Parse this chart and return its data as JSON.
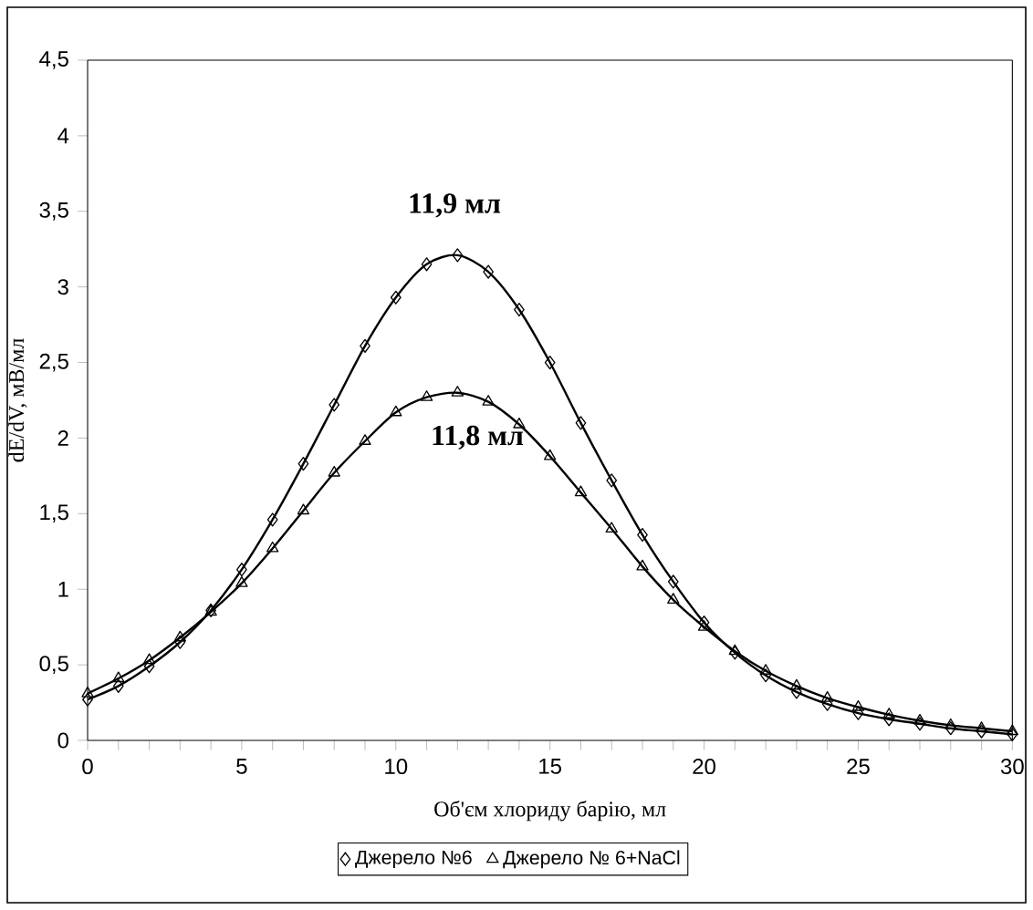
{
  "chart_data": {
    "type": "line",
    "xlabel": "Об'єм хлориду барію, мл",
    "ylabel": "dE/dV, мВ/мл",
    "x": [
      0,
      1,
      2,
      3,
      4,
      5,
      6,
      7,
      8,
      9,
      10,
      11,
      12,
      13,
      14,
      15,
      16,
      17,
      18,
      19,
      20,
      21,
      22,
      23,
      24,
      25,
      26,
      27,
      28,
      29,
      30
    ],
    "series": [
      {
        "name": "Джерело №6",
        "color": "#000000",
        "marker": "diamond",
        "values": [
          0.27,
          0.36,
          0.49,
          0.65,
          0.86,
          1.13,
          1.46,
          1.83,
          2.22,
          2.61,
          2.93,
          3.15,
          3.21,
          3.1,
          2.85,
          2.5,
          2.1,
          1.72,
          1.36,
          1.05,
          0.78,
          0.58,
          0.43,
          0.32,
          0.24,
          0.18,
          0.14,
          0.11,
          0.08,
          0.06,
          0.04
        ]
      },
      {
        "name": "Джерело № 6+NaCl",
        "color": "#000000",
        "marker": "triangle",
        "values": [
          0.31,
          0.41,
          0.53,
          0.68,
          0.85,
          1.04,
          1.27,
          1.52,
          1.77,
          1.98,
          2.17,
          2.27,
          2.3,
          2.24,
          2.09,
          1.88,
          1.64,
          1.4,
          1.15,
          0.93,
          0.75,
          0.59,
          0.46,
          0.36,
          0.28,
          0.22,
          0.17,
          0.13,
          0.1,
          0.08,
          0.06
        ]
      }
    ],
    "annotations": [
      {
        "text": "11,9 мл",
        "x": 11.9,
        "y": 3.21
      },
      {
        "text": "11,8 мл",
        "x": 11.8,
        "y": 2.3
      }
    ],
    "xlim": [
      0,
      30
    ],
    "xticks": [
      0,
      5,
      10,
      15,
      20,
      25,
      30
    ],
    "ylim": [
      0,
      4.5
    ],
    "yticks": [
      0,
      {
        "value": 0.5,
        "label": "0,5"
      },
      1,
      {
        "value": 1.5,
        "label": "1,5"
      },
      2,
      {
        "value": 2.5,
        "label": "2,5"
      },
      3,
      {
        "value": 3.5,
        "label": "3,5"
      },
      4,
      {
        "value": 4.5,
        "label": "4,5"
      }
    ],
    "grid": false,
    "legend": "bottom",
    "line_style": "solid"
  }
}
